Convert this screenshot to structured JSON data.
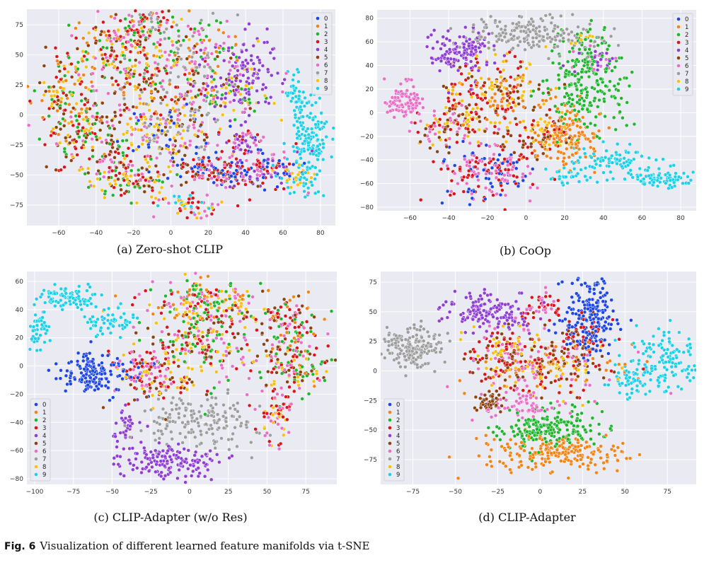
{
  "figure": {
    "label": "Fig. 6",
    "caption": "Visualization of different learned feature manifolds via t-SNE"
  },
  "colors": [
    "#1f47e6",
    "#f28518",
    "#22b530",
    "#d8161b",
    "#8f3fd3",
    "#8b4513",
    "#ea6fc7",
    "#9e9e9e",
    "#f5c214",
    "#1ed0e8"
  ],
  "chart_data": [
    {
      "type": "scatter",
      "caption": "(a) Zero-shot CLIP",
      "classes": [
        "0",
        "1",
        "2",
        "3",
        "4",
        "5",
        "6",
        "7",
        "8",
        "9"
      ],
      "legend": "top-right",
      "grid": true,
      "xlim": [
        -77,
        88
      ],
      "ylim": [
        -92,
        88
      ],
      "xticks": [
        -60,
        -40,
        -20,
        0,
        20,
        40,
        60,
        80
      ],
      "yticks": [
        -75,
        -50,
        -25,
        0,
        25,
        50,
        75
      ],
      "clusters": [
        {
          "c": [
            1,
            2,
            8,
            3,
            5
          ],
          "cx": -55,
          "cy": 10,
          "sx": 9,
          "sy": 22,
          "n": 160
        },
        {
          "c": [
            1,
            2,
            8,
            3,
            5,
            6
          ],
          "cx": -30,
          "cy": 50,
          "sx": 12,
          "sy": 18,
          "n": 170
        },
        {
          "c": [
            1,
            2,
            8,
            3,
            5,
            6,
            7
          ],
          "cx": -12,
          "cy": 70,
          "sx": 10,
          "sy": 10,
          "n": 110
        },
        {
          "c": [
            7,
            6,
            8,
            3,
            5,
            1
          ],
          "cx": -5,
          "cy": 20,
          "sx": 18,
          "sy": 20,
          "n": 200
        },
        {
          "c": [
            6,
            2,
            1,
            7
          ],
          "cx": 15,
          "cy": 55,
          "sx": 10,
          "sy": 18,
          "n": 110
        },
        {
          "c": [
            4
          ],
          "cx": 40,
          "cy": 35,
          "sx": 8,
          "sy": 18,
          "n": 110
        },
        {
          "c": [
            6,
            2,
            4,
            5,
            8
          ],
          "cx": 30,
          "cy": 20,
          "sx": 12,
          "sy": 16,
          "n": 110
        },
        {
          "c": [
            8,
            5,
            2,
            3,
            6
          ],
          "cx": -38,
          "cy": -25,
          "sx": 14,
          "sy": 14,
          "n": 150
        },
        {
          "c": [
            7,
            0,
            6,
            8,
            5
          ],
          "cx": 0,
          "cy": -15,
          "sx": 14,
          "sy": 12,
          "n": 150
        },
        {
          "c": [
            0,
            3,
            6,
            5
          ],
          "cx": 20,
          "cy": -45,
          "sx": 12,
          "sy": 8,
          "n": 140
        },
        {
          "c": [
            0,
            3,
            4,
            6
          ],
          "cx": 48,
          "cy": -45,
          "sx": 10,
          "sy": 8,
          "n": 130
        },
        {
          "c": [
            6,
            8,
            3,
            5,
            2
          ],
          "cx": -20,
          "cy": -55,
          "sx": 12,
          "sy": 8,
          "n": 110
        },
        {
          "c": [
            8,
            9,
            6,
            3
          ],
          "cx": 10,
          "cy": -75,
          "sx": 10,
          "sy": 5,
          "n": 60
        },
        {
          "c": [
            4,
            6,
            3
          ],
          "cx": 40,
          "cy": -22,
          "sx": 6,
          "sy": 6,
          "n": 45
        },
        {
          "c": [
            9
          ],
          "cx": 74,
          "cy": -20,
          "sx": 5,
          "sy": 18,
          "n": 140
        },
        {
          "c": [
            9
          ],
          "cx": 68,
          "cy": 15,
          "sx": 3,
          "sy": 10,
          "n": 45
        },
        {
          "c": [
            9,
            8
          ],
          "cx": 66,
          "cy": -52,
          "sx": 6,
          "sy": 6,
          "n": 45
        }
      ]
    },
    {
      "type": "scatter",
      "caption": "(b) CoOp",
      "classes": [
        "0",
        "1",
        "2",
        "3",
        "4",
        "5",
        "6",
        "7",
        "8",
        "9"
      ],
      "legend": "top-right",
      "grid": true,
      "xlim": [
        -77,
        88
      ],
      "ylim": [
        -83,
        87
      ],
      "xticks": [
        -60,
        -40,
        -20,
        0,
        20,
        40,
        60,
        80
      ],
      "yticks": [
        -80,
        -60,
        -40,
        -20,
        0,
        20,
        40,
        60,
        80
      ],
      "clusters": [
        {
          "c": [
            4
          ],
          "cx": -35,
          "cy": 52,
          "sx": 8,
          "sy": 9,
          "n": 130
        },
        {
          "c": [
            7
          ],
          "cx": 0,
          "cy": 67,
          "sx": 14,
          "sy": 7,
          "n": 160
        },
        {
          "c": [
            7,
            8,
            2
          ],
          "cx": 30,
          "cy": 65,
          "sx": 8,
          "sy": 6,
          "n": 50
        },
        {
          "c": [
            6
          ],
          "cx": -63,
          "cy": 10,
          "sx": 5,
          "sy": 9,
          "n": 90
        },
        {
          "c": [
            5,
            6,
            8,
            3
          ],
          "cx": -40,
          "cy": -10,
          "sx": 8,
          "sy": 10,
          "n": 120
        },
        {
          "c": [
            8,
            3,
            5,
            1
          ],
          "cx": -15,
          "cy": 15,
          "sx": 15,
          "sy": 14,
          "n": 220
        },
        {
          "c": [
            0,
            6,
            3
          ],
          "cx": -20,
          "cy": -50,
          "sx": 12,
          "sy": 12,
          "n": 200
        },
        {
          "c": [
            2
          ],
          "cx": 30,
          "cy": 25,
          "sx": 10,
          "sy": 20,
          "n": 200
        },
        {
          "c": [
            1
          ],
          "cx": 22,
          "cy": -20,
          "sx": 8,
          "sy": 12,
          "n": 150
        },
        {
          "c": [
            5,
            8,
            3
          ],
          "cx": 5,
          "cy": -20,
          "sx": 10,
          "sy": 10,
          "n": 90
        },
        {
          "c": [
            6,
            2,
            4
          ],
          "cx": 35,
          "cy": 45,
          "sx": 7,
          "sy": 6,
          "n": 50
        },
        {
          "c": [
            9
          ],
          "cx": 45,
          "cy": -40,
          "sx": 12,
          "sy": 6,
          "n": 80
        },
        {
          "c": [
            9
          ],
          "cx": 70,
          "cy": -55,
          "sx": 10,
          "sy": 4,
          "n": 80
        },
        {
          "c": [
            9
          ],
          "cx": 22,
          "cy": -55,
          "sx": 8,
          "sy": 4,
          "n": 30
        }
      ]
    },
    {
      "type": "scatter",
      "caption": "(c) CLIP-Adapter (w/o Res)",
      "classes": [
        "0",
        "1",
        "2",
        "3",
        "4",
        "5",
        "6",
        "7",
        "8",
        "9"
      ],
      "legend": "bottom-left",
      "grid": true,
      "xlim": [
        -105,
        95
      ],
      "ylim": [
        -84,
        67
      ],
      "xticks": [
        -100,
        -75,
        -50,
        -25,
        0,
        25,
        50,
        75
      ],
      "yticks": [
        -80,
        -60,
        -40,
        -20,
        0,
        20,
        40,
        60
      ],
      "clusters": [
        {
          "c": [
            9
          ],
          "cx": -97,
          "cy": 28,
          "sx": 3,
          "sy": 8,
          "n": 50
        },
        {
          "c": [
            9
          ],
          "cx": -78,
          "cy": 48,
          "sx": 9,
          "sy": 5,
          "n": 90
        },
        {
          "c": [
            9
          ],
          "cx": -50,
          "cy": 33,
          "sx": 8,
          "sy": 5,
          "n": 60
        },
        {
          "c": [
            0
          ],
          "cx": -62,
          "cy": -5,
          "sx": 11,
          "sy": 7,
          "n": 140
        },
        {
          "c": [
            0,
            8,
            3,
            6
          ],
          "cx": -30,
          "cy": 0,
          "sx": 10,
          "sy": 6,
          "n": 60
        },
        {
          "c": [
            1,
            2,
            8,
            3,
            6
          ],
          "cx": 10,
          "cy": 45,
          "sx": 20,
          "sy": 8,
          "n": 200
        },
        {
          "c": [
            2,
            1,
            5,
            3,
            6
          ],
          "cx": 65,
          "cy": 20,
          "sx": 10,
          "sy": 16,
          "n": 160
        },
        {
          "c": [
            8,
            3,
            5,
            6,
            2
          ],
          "cx": 10,
          "cy": 15,
          "sx": 20,
          "sy": 14,
          "n": 220
        },
        {
          "c": [
            5,
            2,
            3,
            8
          ],
          "cx": 70,
          "cy": -2,
          "sx": 12,
          "sy": 8,
          "n": 80
        },
        {
          "c": [
            6,
            8,
            3,
            5
          ],
          "cx": -25,
          "cy": -10,
          "sx": 12,
          "sy": 10,
          "n": 100
        },
        {
          "c": [
            7
          ],
          "cx": 5,
          "cy": -40,
          "sx": 18,
          "sy": 10,
          "n": 170
        },
        {
          "c": [
            4
          ],
          "cx": -10,
          "cy": -68,
          "sx": 18,
          "sy": 6,
          "n": 150
        },
        {
          "c": [
            4
          ],
          "cx": -40,
          "cy": -45,
          "sx": 5,
          "sy": 7,
          "n": 40
        },
        {
          "c": [
            6,
            3,
            8
          ],
          "cx": 55,
          "cy": -35,
          "sx": 8,
          "sy": 10,
          "n": 70
        }
      ]
    },
    {
      "type": "scatter",
      "caption": "(d) CLIP-Adapter",
      "classes": [
        "0",
        "1",
        "2",
        "3",
        "4",
        "5",
        "6",
        "7",
        "8",
        "9"
      ],
      "legend": "bottom-left",
      "grid": true,
      "xlim": [
        -94,
        92
      ],
      "ylim": [
        -96,
        84
      ],
      "xticks": [
        -75,
        -50,
        -25,
        0,
        25,
        50,
        75
      ],
      "yticks": [
        -75,
        -50,
        -25,
        0,
        25,
        50,
        75
      ],
      "clusters": [
        {
          "c": [
            7
          ],
          "cx": -75,
          "cy": 20,
          "sx": 9,
          "sy": 9,
          "n": 170
        },
        {
          "c": [
            4
          ],
          "cx": -30,
          "cy": 50,
          "sx": 13,
          "sy": 7,
          "n": 160
        },
        {
          "c": [
            6,
            8,
            3,
            5
          ],
          "cx": -18,
          "cy": 10,
          "sx": 12,
          "sy": 14,
          "n": 170
        },
        {
          "c": [
            5
          ],
          "cx": -30,
          "cy": -28,
          "sx": 5,
          "sy": 5,
          "n": 50
        },
        {
          "c": [
            0
          ],
          "cx": 30,
          "cy": 50,
          "sx": 7,
          "sy": 18,
          "n": 170
        },
        {
          "c": [
            3,
            0,
            5
          ],
          "cx": 25,
          "cy": 30,
          "sx": 10,
          "sy": 10,
          "n": 80
        },
        {
          "c": [
            8,
            3,
            5,
            6,
            1
          ],
          "cx": 10,
          "cy": 5,
          "sx": 22,
          "sy": 12,
          "n": 230
        },
        {
          "c": [
            6,
            3
          ],
          "cx": 0,
          "cy": 55,
          "sx": 6,
          "sy": 6,
          "n": 45
        },
        {
          "c": [
            2
          ],
          "cx": 5,
          "cy": -50,
          "sx": 15,
          "sy": 9,
          "n": 190
        },
        {
          "c": [
            1
          ],
          "cx": 10,
          "cy": -70,
          "sx": 22,
          "sy": 8,
          "n": 200
        },
        {
          "c": [
            6
          ],
          "cx": -10,
          "cy": -30,
          "sx": 12,
          "sy": 6,
          "n": 60
        },
        {
          "c": [
            9
          ],
          "cx": 72,
          "cy": 8,
          "sx": 13,
          "sy": 12,
          "n": 150
        },
        {
          "c": [
            9
          ],
          "cx": 50,
          "cy": -8,
          "sx": 6,
          "sy": 5,
          "n": 30
        }
      ]
    }
  ]
}
